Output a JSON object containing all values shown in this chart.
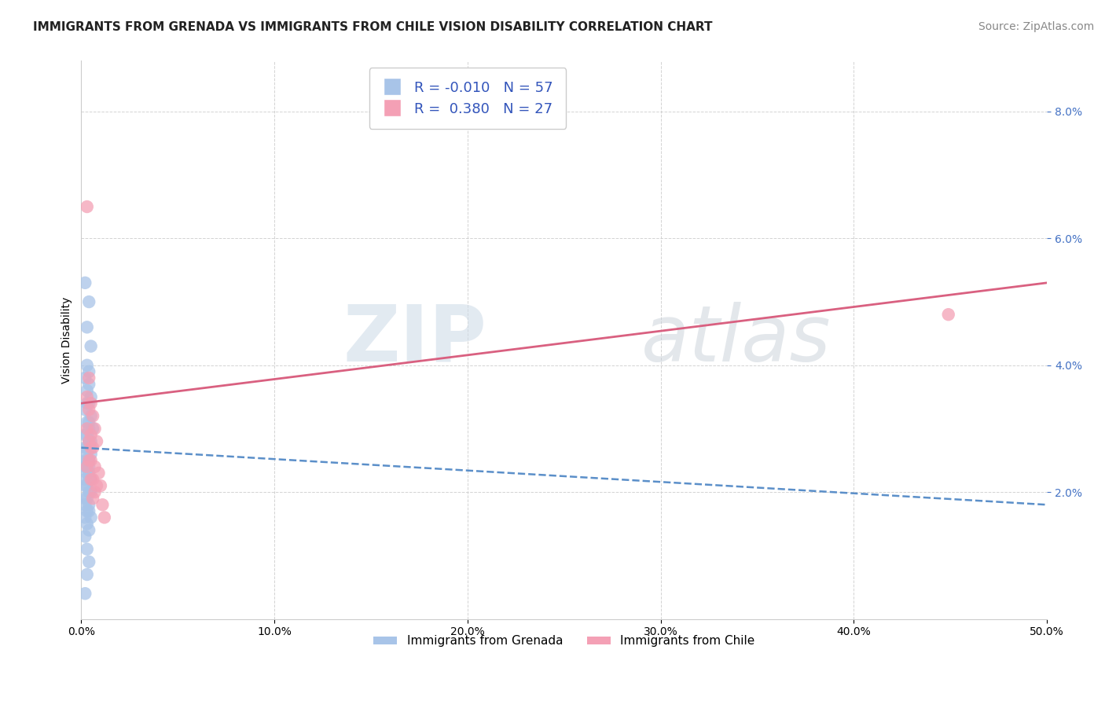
{
  "title": "IMMIGRANTS FROM GRENADA VS IMMIGRANTS FROM CHILE VISION DISABILITY CORRELATION CHART",
  "source": "Source: ZipAtlas.com",
  "ylabel": "Vision Disability",
  "xlim": [
    0.0,
    0.5
  ],
  "ylim": [
    0.0,
    0.088
  ],
  "yticks": [
    0.02,
    0.04,
    0.06,
    0.08
  ],
  "ytick_labels": [
    "2.0%",
    "4.0%",
    "6.0%",
    "8.0%"
  ],
  "xticks": [
    0.0,
    0.1,
    0.2,
    0.3,
    0.4,
    0.5
  ],
  "xtick_labels": [
    "0.0%",
    "10.0%",
    "20.0%",
    "30.0%",
    "40.0%",
    "50.0%"
  ],
  "grenada_color": "#a8c4e8",
  "chile_color": "#f4a0b5",
  "grenada_R": -0.01,
  "grenada_N": 57,
  "chile_R": 0.38,
  "chile_N": 27,
  "grenada_line_color": "#5b8fc9",
  "chile_line_color": "#d96080",
  "watermark_zip": "ZIP",
  "watermark_atlas": "atlas",
  "legend_label_grenada": "Immigrants from Grenada",
  "legend_label_chile": "Immigrants from Chile",
  "grenada_line": [
    [
      0.0,
      0.027
    ],
    [
      0.5,
      0.018
    ]
  ],
  "chile_line": [
    [
      0.0,
      0.034
    ],
    [
      0.5,
      0.053
    ]
  ],
  "grenada_scatter": [
    [
      0.002,
      0.053
    ],
    [
      0.004,
      0.05
    ],
    [
      0.003,
      0.046
    ],
    [
      0.005,
      0.043
    ],
    [
      0.003,
      0.04
    ],
    [
      0.004,
      0.039
    ],
    [
      0.002,
      0.038
    ],
    [
      0.004,
      0.037
    ],
    [
      0.003,
      0.036
    ],
    [
      0.005,
      0.035
    ],
    [
      0.004,
      0.034
    ],
    [
      0.003,
      0.034
    ],
    [
      0.002,
      0.033
    ],
    [
      0.005,
      0.032
    ],
    [
      0.004,
      0.031
    ],
    [
      0.003,
      0.031
    ],
    [
      0.006,
      0.03
    ],
    [
      0.004,
      0.03
    ],
    [
      0.003,
      0.029
    ],
    [
      0.002,
      0.029
    ],
    [
      0.005,
      0.028
    ],
    [
      0.004,
      0.028
    ],
    [
      0.003,
      0.027
    ],
    [
      0.002,
      0.027
    ],
    [
      0.004,
      0.027
    ],
    [
      0.003,
      0.026
    ],
    [
      0.005,
      0.026
    ],
    [
      0.004,
      0.025
    ],
    [
      0.002,
      0.025
    ],
    [
      0.003,
      0.025
    ],
    [
      0.004,
      0.024
    ],
    [
      0.003,
      0.024
    ],
    [
      0.002,
      0.024
    ],
    [
      0.004,
      0.023
    ],
    [
      0.003,
      0.023
    ],
    [
      0.005,
      0.022
    ],
    [
      0.002,
      0.022
    ],
    [
      0.004,
      0.022
    ],
    [
      0.003,
      0.021
    ],
    [
      0.002,
      0.021
    ],
    [
      0.004,
      0.02
    ],
    [
      0.005,
      0.02
    ],
    [
      0.002,
      0.019
    ],
    [
      0.003,
      0.019
    ],
    [
      0.004,
      0.018
    ],
    [
      0.002,
      0.018
    ],
    [
      0.003,
      0.017
    ],
    [
      0.004,
      0.017
    ],
    [
      0.002,
      0.016
    ],
    [
      0.005,
      0.016
    ],
    [
      0.003,
      0.015
    ],
    [
      0.004,
      0.014
    ],
    [
      0.002,
      0.013
    ],
    [
      0.003,
      0.011
    ],
    [
      0.004,
      0.009
    ],
    [
      0.003,
      0.007
    ],
    [
      0.002,
      0.004
    ]
  ],
  "chile_scatter": [
    [
      0.003,
      0.065
    ],
    [
      0.004,
      0.038
    ],
    [
      0.003,
      0.035
    ],
    [
      0.005,
      0.034
    ],
    [
      0.004,
      0.033
    ],
    [
      0.006,
      0.032
    ],
    [
      0.003,
      0.03
    ],
    [
      0.007,
      0.03
    ],
    [
      0.005,
      0.029
    ],
    [
      0.004,
      0.028
    ],
    [
      0.008,
      0.028
    ],
    [
      0.005,
      0.027
    ],
    [
      0.006,
      0.027
    ],
    [
      0.004,
      0.025
    ],
    [
      0.005,
      0.025
    ],
    [
      0.007,
      0.024
    ],
    [
      0.003,
      0.024
    ],
    [
      0.009,
      0.023
    ],
    [
      0.005,
      0.022
    ],
    [
      0.006,
      0.022
    ],
    [
      0.008,
      0.021
    ],
    [
      0.01,
      0.021
    ],
    [
      0.007,
      0.02
    ],
    [
      0.006,
      0.019
    ],
    [
      0.011,
      0.018
    ],
    [
      0.012,
      0.016
    ],
    [
      0.449,
      0.048
    ]
  ],
  "background_color": "#ffffff",
  "grid_color": "#c8c8c8",
  "title_fontsize": 11,
  "axis_fontsize": 10,
  "tick_fontsize": 10,
  "source_fontsize": 10
}
